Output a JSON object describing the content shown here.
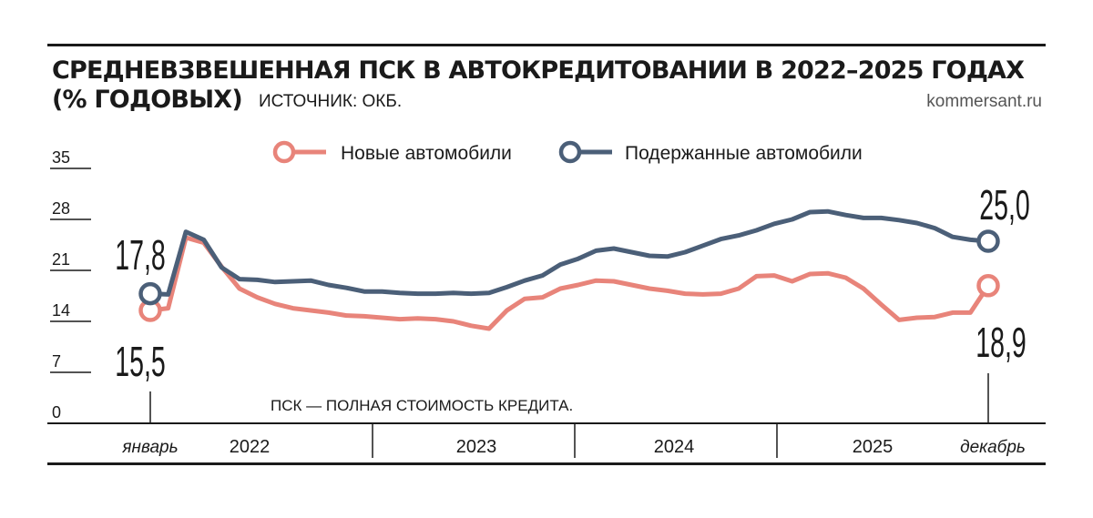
{
  "header": {
    "title_line1": "СРЕДНЕВЗВЕШЕННАЯ ПСК В АВТОКРЕДИТОВАНИИ В 2022–2025 ГОДАХ",
    "title_line2": "(% ГОДОВЫХ)",
    "source": "ИСТОЧНИК: ОКБ.",
    "brand": "kommersant.ru"
  },
  "footnote": "ПСК — ПОЛНАЯ СТОИМОСТЬ КРЕДИТА.",
  "colors": {
    "new": "#e8847a",
    "used": "#4b5f78",
    "axis": "#1a1a1a"
  },
  "chart_data": {
    "type": "line",
    "title": "СРЕДНЕВЗВЕШЕННАЯ ПСК В АВТОКРЕДИТОВАНИИ В 2022–2025 ГОДАХ (% ГОДОВЫХ)",
    "ylim": [
      0,
      35
    ],
    "yticks": [
      "35",
      "28",
      "21",
      "14",
      "7",
      "0"
    ],
    "ytick_values": [
      35,
      28,
      21,
      14,
      7,
      0
    ],
    "x_start_label": "январь",
    "x_end_label": "декабрь",
    "year_labels": [
      "2022",
      "2023",
      "2024",
      "2025"
    ],
    "legend": [
      "Новые автомобили",
      "Подержанные автомобили"
    ],
    "start_labels": {
      "new": "15,5",
      "used": "17,8"
    },
    "end_labels": {
      "new": "18,9",
      "used": "25,0"
    },
    "series": [
      {
        "name": "Новые автомобили",
        "key": "new",
        "values": [
          15.5,
          15.8,
          25.5,
          24.8,
          21.5,
          18.5,
          17.3,
          16.4,
          15.8,
          15.5,
          15.2,
          14.8,
          14.7,
          14.5,
          14.3,
          14.4,
          14.3,
          14.0,
          13.4,
          13.0,
          15.5,
          17.1,
          17.3,
          18.5,
          19.0,
          19.6,
          19.5,
          19.0,
          18.5,
          18.2,
          17.8,
          17.7,
          17.8,
          18.5,
          20.2,
          20.3,
          19.5,
          20.5,
          20.6,
          20.0,
          18.5,
          16.3,
          14.2,
          14.5,
          14.6,
          15.2,
          15.2,
          18.9
        ]
      },
      {
        "name": "Подержанные автомобили",
        "key": "used",
        "values": [
          17.8,
          17.7,
          26.3,
          25.2,
          21.4,
          19.8,
          19.7,
          19.4,
          19.5,
          19.6,
          19.0,
          18.6,
          18.1,
          18.1,
          17.9,
          17.8,
          17.8,
          17.9,
          17.8,
          17.9,
          18.7,
          19.6,
          20.3,
          21.8,
          22.6,
          23.7,
          24.0,
          23.5,
          23.0,
          22.9,
          23.5,
          24.4,
          25.3,
          25.8,
          26.5,
          27.4,
          28.0,
          29.0,
          29.1,
          28.6,
          28.2,
          28.2,
          27.9,
          27.5,
          26.8,
          25.6,
          25.2,
          25.0
        ]
      }
    ]
  }
}
